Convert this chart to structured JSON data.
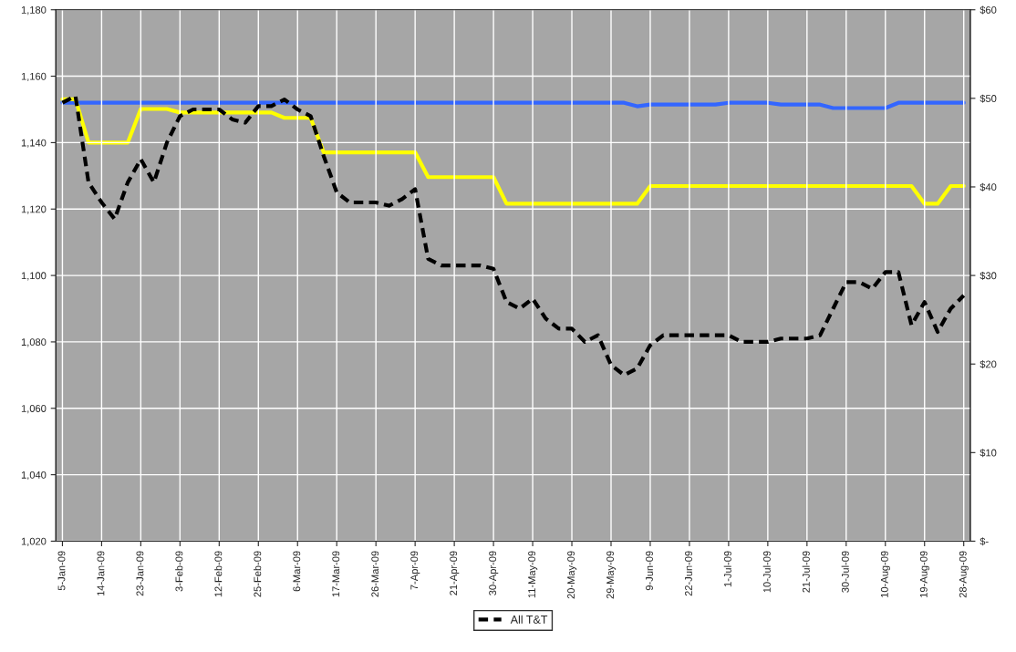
{
  "chart_data": {
    "type": "line",
    "categories": [
      "5-Jan-09",
      null,
      null,
      "14-Jan-09",
      null,
      null,
      "23-Jan-09",
      null,
      null,
      "3-Feb-09",
      null,
      null,
      "12-Feb-09",
      null,
      null,
      "25-Feb-09",
      null,
      null,
      "6-Mar-09",
      null,
      null,
      "17-Mar-09",
      null,
      null,
      "26-Mar-09",
      null,
      null,
      "7-Apr-09",
      null,
      null,
      "21-Apr-09",
      null,
      null,
      "30-Apr-09",
      null,
      null,
      "11-May-09",
      null,
      null,
      "20-May-09",
      null,
      null,
      "29-May-09",
      null,
      null,
      "9-Jun-09",
      null,
      null,
      "22-Jun-09",
      null,
      null,
      "1-Jul-09",
      null,
      null,
      "10-Jul-09",
      null,
      null,
      "21-Jul-09",
      null,
      null,
      "30-Jul-09",
      null,
      null,
      "10-Aug-09",
      null,
      null,
      "19-Aug-09",
      null,
      null,
      "28-Aug-09"
    ],
    "series": [
      {
        "color": "#3366ff",
        "axis": "y2",
        "line_style": "solid",
        "values": [
          49.5,
          49.5,
          49.5,
          49.5,
          49.5,
          49.5,
          49.5,
          49.5,
          49.5,
          49.5,
          49.5,
          49.5,
          49.5,
          49.5,
          49.5,
          49.5,
          49.5,
          49.5,
          49.5,
          49.5,
          49.5,
          49.5,
          49.5,
          49.5,
          49.5,
          49.5,
          49.5,
          49.5,
          49.5,
          49.5,
          49.5,
          49.5,
          49.5,
          49.5,
          49.5,
          49.5,
          49.5,
          49.5,
          49.5,
          49.5,
          49.5,
          49.5,
          49.5,
          49.5,
          49.1,
          49.3,
          49.3,
          49.3,
          49.3,
          49.3,
          49.3,
          49.5,
          49.5,
          49.5,
          49.5,
          49.3,
          49.3,
          49.3,
          49.3,
          48.9,
          48.9,
          48.9,
          48.9,
          48.9,
          49.5,
          49.5,
          49.5,
          49.5,
          49.5,
          49.5
        ]
      },
      {
        "color": "#ffff00",
        "axis": "y2",
        "line_style": "solid",
        "values": [
          49.9,
          49.9,
          45.0,
          45.0,
          45.0,
          45.0,
          48.8,
          48.8,
          48.8,
          48.4,
          48.4,
          48.4,
          48.4,
          48.4,
          48.4,
          48.4,
          48.4,
          47.8,
          47.8,
          47.8,
          43.9,
          43.9,
          43.9,
          43.9,
          43.9,
          43.9,
          43.9,
          43.9,
          41.1,
          41.1,
          41.1,
          41.1,
          41.1,
          41.1,
          38.1,
          38.1,
          38.1,
          38.1,
          38.1,
          38.1,
          38.1,
          38.1,
          38.1,
          38.1,
          38.1,
          40.1,
          40.1,
          40.1,
          40.1,
          40.1,
          40.1,
          40.1,
          40.1,
          40.1,
          40.1,
          40.1,
          40.1,
          40.1,
          40.1,
          40.1,
          40.1,
          40.1,
          40.1,
          40.1,
          40.1,
          40.1,
          38.1,
          38.1,
          40.1,
          40.1
        ]
      },
      {
        "name": "All T&T",
        "color": "#000000",
        "axis": "y",
        "line_style": "dashed",
        "values": [
          1152,
          1154,
          1128,
          1122,
          1117,
          1128,
          1135,
          1128,
          1140,
          1148,
          1150,
          1150,
          1150,
          1147,
          1146,
          1151,
          1151,
          1153,
          1150,
          1148,
          1136,
          1125,
          1122,
          1122,
          1122,
          1121,
          1123,
          1126,
          1105,
          1103,
          1103,
          1103,
          1103,
          1102,
          1092,
          1090,
          1093,
          1087,
          1084,
          1084,
          1080,
          1082,
          1073,
          1070,
          1072,
          1079,
          1082,
          1082,
          1082,
          1082,
          1082,
          1082,
          1080,
          1080,
          1080,
          1081,
          1081,
          1081,
          1082,
          1090,
          1098,
          1098,
          1096,
          1101,
          1101,
          1085,
          1092,
          1083,
          1090,
          1094
        ]
      }
    ],
    "ylim": [
      1020,
      1180
    ],
    "yticks": [
      {
        "value": 1020,
        "label": "1,020"
      },
      {
        "value": 1040,
        "label": "1,040"
      },
      {
        "value": 1060,
        "label": "1,060"
      },
      {
        "value": 1080,
        "label": "1,080"
      },
      {
        "value": 1100,
        "label": "1,100"
      },
      {
        "value": 1120,
        "label": "1,120"
      },
      {
        "value": 1140,
        "label": "1,140"
      },
      {
        "value": 1160,
        "label": "1,160"
      },
      {
        "value": 1180,
        "label": "1,180"
      }
    ],
    "y2lim": [
      0,
      60
    ],
    "y2ticks": [
      {
        "value": 0,
        "label": "$-"
      },
      {
        "value": 10,
        "label": "$10"
      },
      {
        "value": 20,
        "label": "$20"
      },
      {
        "value": 30,
        "label": "$30"
      },
      {
        "value": 40,
        "label": "$40"
      },
      {
        "value": 50,
        "label": "$50"
      },
      {
        "value": 60,
        "label": "$60"
      }
    ],
    "grid": true,
    "legend": "bottom",
    "marker": "none"
  }
}
